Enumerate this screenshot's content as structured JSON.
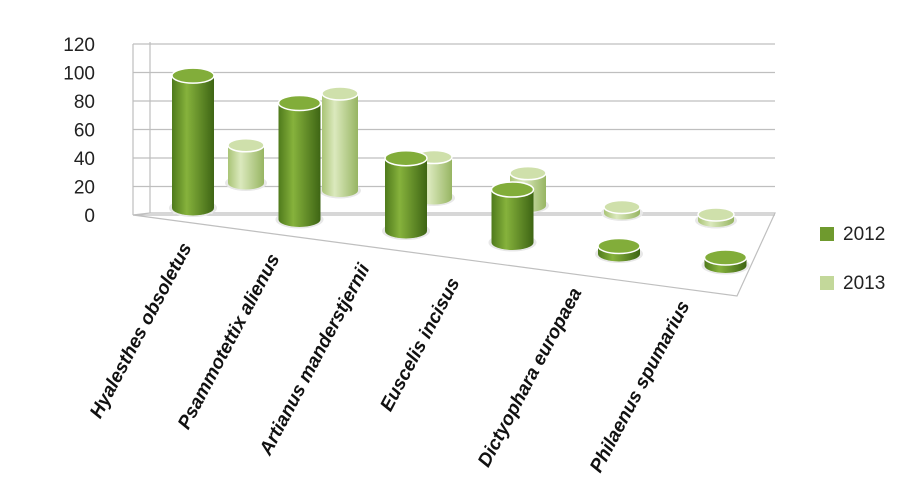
{
  "chart_data": {
    "type": "bar",
    "categories": [
      "Hyalesthes obsoletus",
      "Psammotettix alienus",
      "Artianus manderstjernii",
      "Euscelis incisus",
      "Dictyophara europaea",
      "Philaenus spumarius"
    ],
    "series": [
      {
        "name": "2012",
        "values": [
          100,
          88,
          55,
          40,
          5,
          3
        ],
        "color": "#6f9a2e"
      },
      {
        "name": "2013",
        "values": [
          35,
          90,
          38,
          30,
          3,
          2
        ],
        "color": "#c3d89a"
      }
    ],
    "yticks": [
      "0",
      "20",
      "40",
      "60",
      "80",
      "100",
      "120"
    ],
    "ylim": [
      0,
      120
    ],
    "grid": true,
    "legend_position": "right"
  }
}
